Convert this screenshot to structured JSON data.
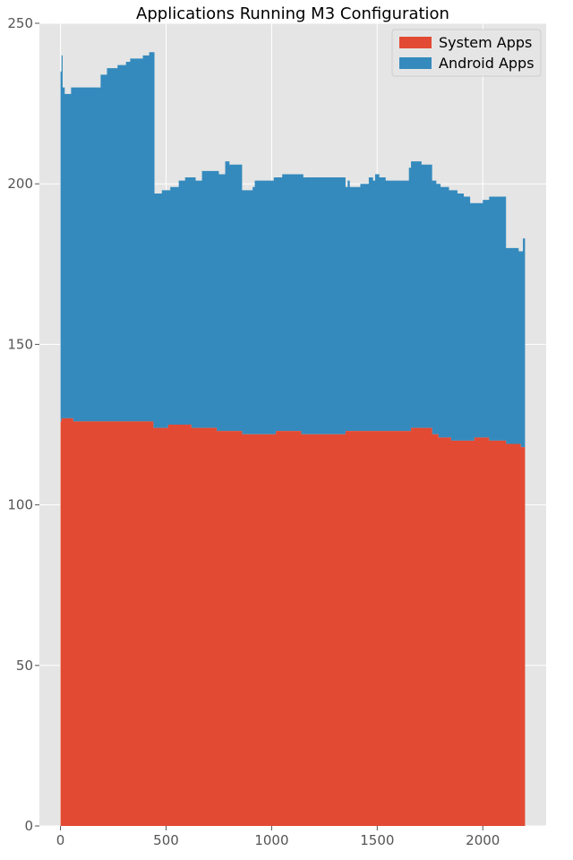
{
  "chart_data": {
    "type": "area",
    "stacked": true,
    "title": "Applications Running M3 Configuration",
    "xlabel": "",
    "ylabel": "",
    "xlim": [
      -100,
      2300
    ],
    "ylim": [
      0,
      250
    ],
    "xticks": [
      0,
      500,
      1000,
      1500,
      2000
    ],
    "yticks": [
      0,
      50,
      100,
      150,
      200,
      250
    ],
    "grid": true,
    "legend_position": "top-right",
    "series": [
      {
        "name": "System Apps",
        "color": "#E24A33",
        "points": [
          [
            0,
            126
          ],
          [
            5,
            127
          ],
          [
            60,
            126
          ],
          [
            200,
            126
          ],
          [
            430,
            126
          ],
          [
            440,
            124
          ],
          [
            500,
            124
          ],
          [
            510,
            125
          ],
          [
            610,
            125
          ],
          [
            620,
            124
          ],
          [
            730,
            124
          ],
          [
            740,
            123
          ],
          [
            850,
            123
          ],
          [
            860,
            122
          ],
          [
            1010,
            122
          ],
          [
            1020,
            123
          ],
          [
            1130,
            123
          ],
          [
            1140,
            122
          ],
          [
            1340,
            122
          ],
          [
            1350,
            123
          ],
          [
            1500,
            123
          ],
          [
            1650,
            123
          ],
          [
            1660,
            124
          ],
          [
            1740,
            124
          ],
          [
            1760,
            122
          ],
          [
            1790,
            121
          ],
          [
            1840,
            121
          ],
          [
            1850,
            120
          ],
          [
            1950,
            120
          ],
          [
            1960,
            121
          ],
          [
            2020,
            121
          ],
          [
            2030,
            120
          ],
          [
            2100,
            120
          ],
          [
            2110,
            119
          ],
          [
            2180,
            118
          ],
          [
            2200,
            118
          ]
        ]
      },
      {
        "name": "Android Apps",
        "color": "#348ABD",
        "points": [
          [
            0,
            235
          ],
          [
            5,
            240
          ],
          [
            10,
            230
          ],
          [
            20,
            228
          ],
          [
            40,
            228
          ],
          [
            50,
            230
          ],
          [
            180,
            230
          ],
          [
            190,
            234
          ],
          [
            210,
            234
          ],
          [
            220,
            236
          ],
          [
            260,
            236
          ],
          [
            270,
            237
          ],
          [
            300,
            237
          ],
          [
            310,
            238
          ],
          [
            320,
            238
          ],
          [
            330,
            239
          ],
          [
            380,
            239
          ],
          [
            390,
            240
          ],
          [
            410,
            240
          ],
          [
            420,
            241
          ],
          [
            435,
            241
          ],
          [
            445,
            197
          ],
          [
            470,
            197
          ],
          [
            480,
            198
          ],
          [
            510,
            198
          ],
          [
            520,
            199
          ],
          [
            550,
            199
          ],
          [
            560,
            201
          ],
          [
            580,
            201
          ],
          [
            590,
            202
          ],
          [
            630,
            202
          ],
          [
            640,
            201
          ],
          [
            660,
            201
          ],
          [
            670,
            204
          ],
          [
            740,
            204
          ],
          [
            750,
            203
          ],
          [
            770,
            203
          ],
          [
            780,
            207
          ],
          [
            800,
            206
          ],
          [
            855,
            206
          ],
          [
            860,
            198
          ],
          [
            900,
            198
          ],
          [
            910,
            199
          ],
          [
            920,
            201
          ],
          [
            1000,
            201
          ],
          [
            1010,
            202
          ],
          [
            1040,
            202
          ],
          [
            1050,
            203
          ],
          [
            1140,
            203
          ],
          [
            1150,
            202
          ],
          [
            1340,
            202
          ],
          [
            1350,
            199
          ],
          [
            1360,
            201
          ],
          [
            1370,
            199
          ],
          [
            1410,
            199
          ],
          [
            1420,
            200
          ],
          [
            1450,
            200
          ],
          [
            1460,
            202
          ],
          [
            1480,
            201
          ],
          [
            1490,
            203
          ],
          [
            1510,
            202
          ],
          [
            1530,
            202
          ],
          [
            1540,
            201
          ],
          [
            1640,
            201
          ],
          [
            1650,
            205
          ],
          [
            1660,
            207
          ],
          [
            1700,
            207
          ],
          [
            1710,
            206
          ],
          [
            1750,
            206
          ],
          [
            1760,
            201
          ],
          [
            1780,
            200
          ],
          [
            1800,
            199
          ],
          [
            1830,
            199
          ],
          [
            1840,
            198
          ],
          [
            1870,
            198
          ],
          [
            1880,
            197
          ],
          [
            1900,
            197
          ],
          [
            1910,
            196
          ],
          [
            1930,
            196
          ],
          [
            1940,
            194
          ],
          [
            1990,
            194
          ],
          [
            2000,
            195
          ],
          [
            2030,
            196
          ],
          [
            2050,
            196
          ],
          [
            2100,
            196
          ],
          [
            2110,
            180
          ],
          [
            2160,
            180
          ],
          [
            2170,
            179
          ],
          [
            2190,
            183
          ],
          [
            2200,
            182
          ]
        ]
      }
    ]
  }
}
